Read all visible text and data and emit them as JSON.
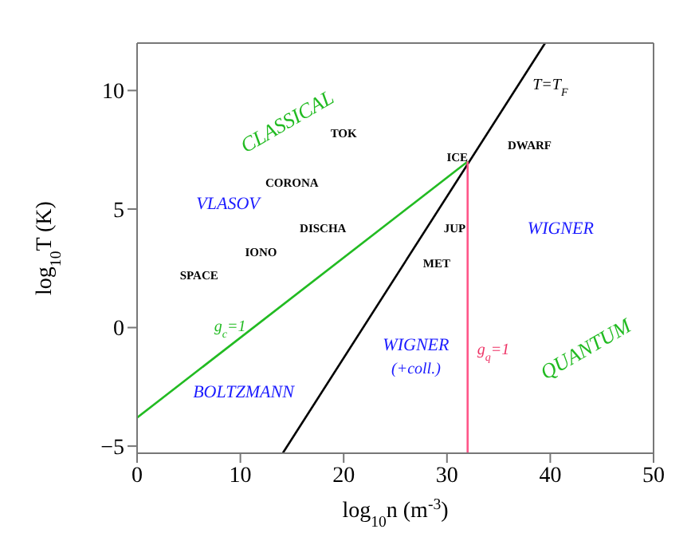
{
  "chart_data": {
    "type": "line",
    "xlabel": "log$_{10}$n (m$^{-3}$)",
    "ylabel": "log$_{10}$T (K)",
    "xlim": [
      0,
      50
    ],
    "xticks": [
      0,
      10,
      20,
      30,
      40,
      50
    ],
    "ylim": [
      -5.3,
      12
    ],
    "yticks": [
      -5,
      0,
      5,
      10
    ],
    "grid": false,
    "legend": false,
    "marker": "none",
    "line_style": "solid",
    "series": [
      {
        "color": "#22bb22",
        "x": [
          0,
          32
        ],
        "values": [
          -3.8,
          7
        ]
      },
      {
        "color": "#000000",
        "x": [
          14.1,
          39.5
        ],
        "values": [
          -5.3,
          12
        ]
      },
      {
        "color": "#ff5588",
        "x": [
          32,
          32
        ],
        "values": [
          -5.3,
          7
        ]
      }
    ],
    "annotations": [
      "CLASSICAL",
      "TOK",
      "CORONA",
      "VLASOV",
      "DISCHA",
      "IONO",
      "SPACE",
      "ICE",
      "DWARF",
      "JUP",
      "MET",
      "WIGNER",
      "T=T$_{F}$",
      "g$_{c}$=1",
      "WIGNER",
      "(+coll.)",
      "g$_{q}$=1",
      "QUANTUM",
      "BOLTZMANN"
    ]
  }
}
